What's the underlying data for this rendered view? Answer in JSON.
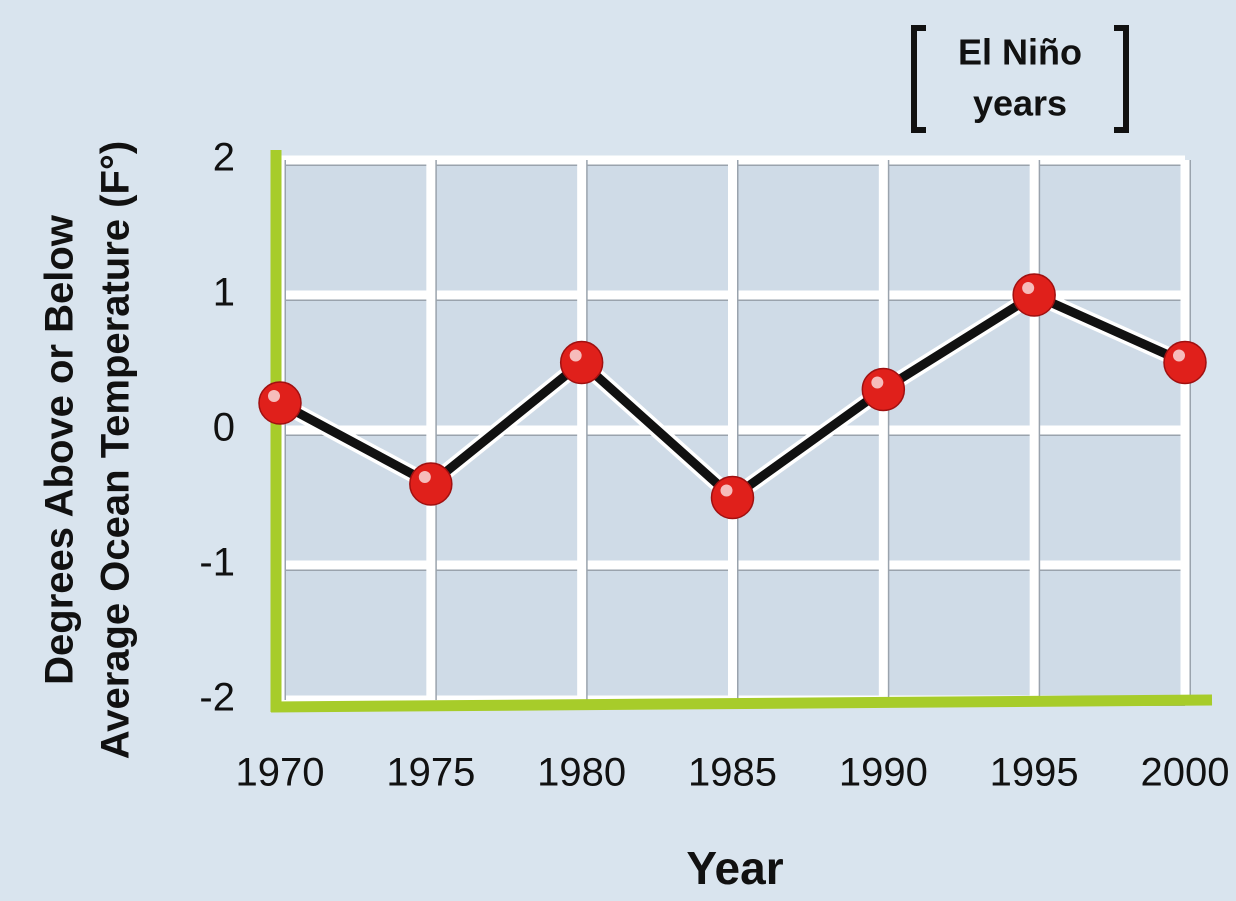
{
  "chart_data": {
    "type": "line",
    "ylabel": [
      "Degrees Above or Below",
      "Average Ocean Temperature (F°)"
    ],
    "xlabel": "Year",
    "annotation": [
      "El Niño",
      "years"
    ],
    "x": [
      1970,
      1975,
      1980,
      1985,
      1990,
      1995,
      2000
    ],
    "values": [
      0.2,
      -0.4,
      0.5,
      -0.5,
      0.3,
      1,
      0.5
    ],
    "color": "#111111",
    "marker_color": "#e0201b",
    "xlim": [
      1970,
      2000
    ],
    "xticks": [
      1970,
      1975,
      1980,
      1985,
      1990,
      1995,
      2000
    ],
    "ylim": [
      -2,
      2
    ],
    "yticks": [
      -2,
      -1,
      0,
      1,
      2
    ],
    "grid": true
  }
}
